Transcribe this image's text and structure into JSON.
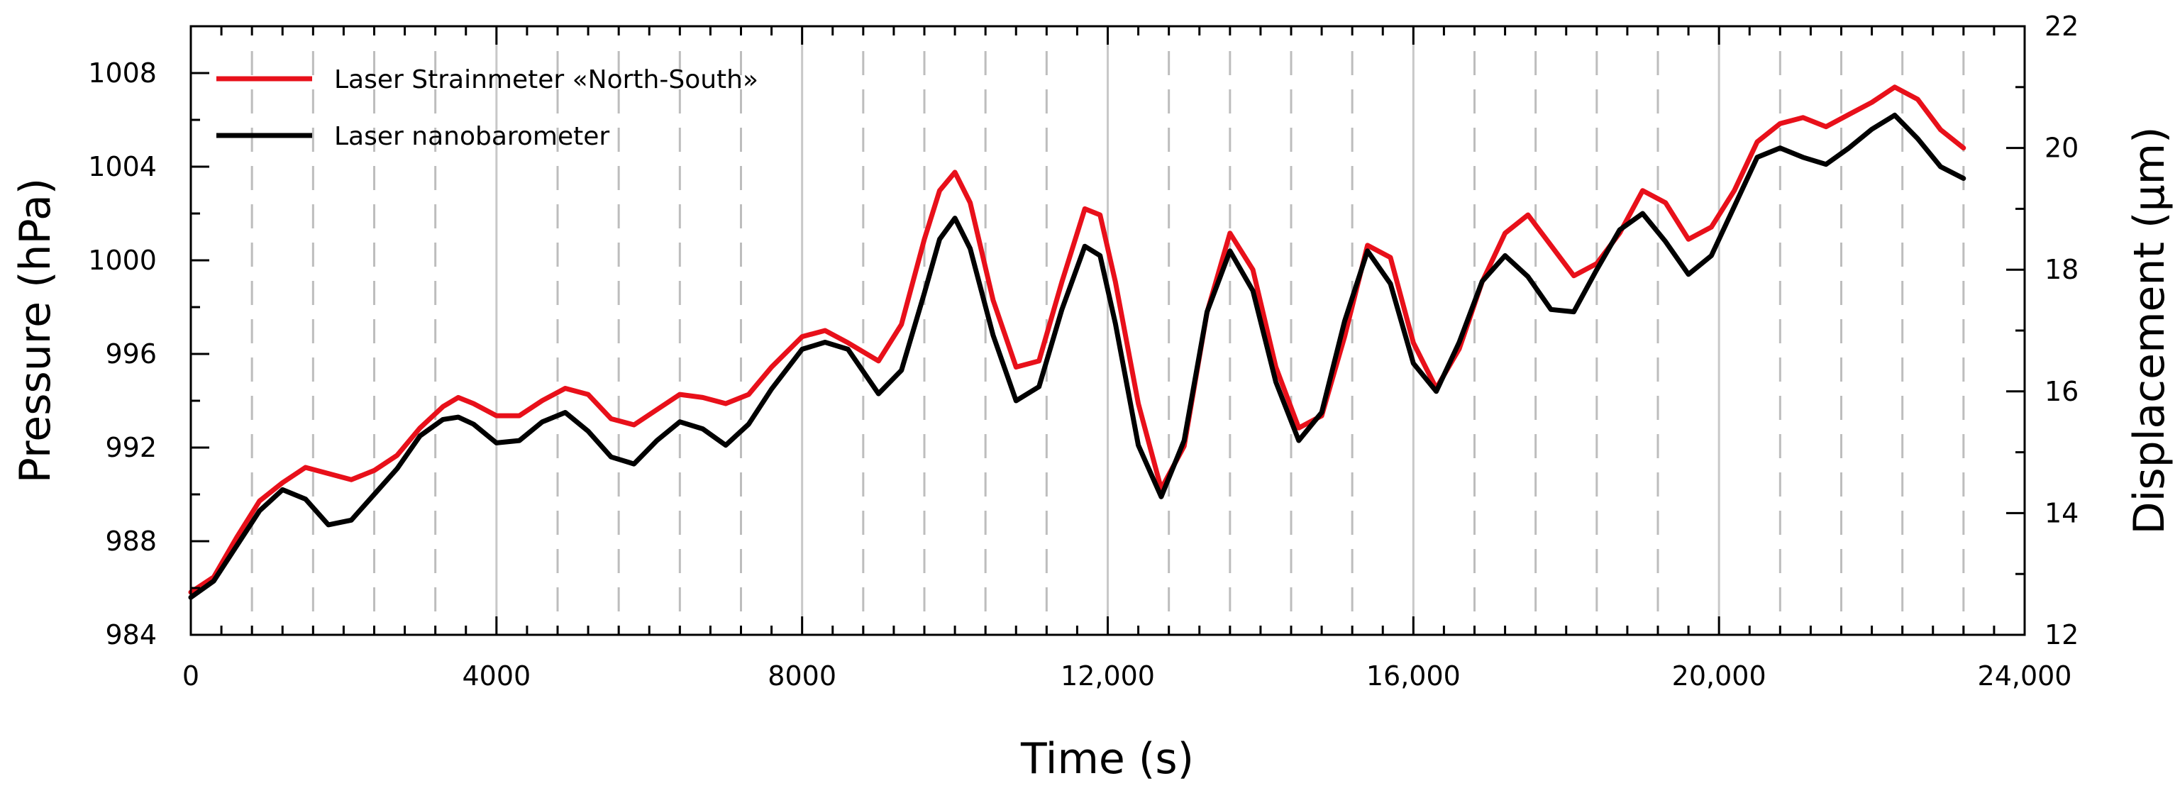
{
  "chart_data": {
    "type": "line",
    "title": "",
    "xlabel": "Time (s)",
    "ylabel_left": "Pressure (hPa)",
    "ylabel_right": "Displacement (µm)",
    "xlim": [
      0,
      24000
    ],
    "ylim_left": [
      984,
      1010
    ],
    "ylim_right": [
      12,
      22
    ],
    "x_ticks": [
      "0",
      "4000",
      "8000",
      "12,000",
      "16,000",
      "20,000",
      "24,000"
    ],
    "y_ticks_left": [
      "984",
      "988",
      "992",
      "996",
      "1000",
      "1004",
      "1008"
    ],
    "y_ticks_right": [
      "12",
      "14",
      "16",
      "18",
      "20",
      "22"
    ],
    "grid": "vertical lines: solid every 4000 s, dashed every 800 s",
    "legend_position": "top-left",
    "series": [
      {
        "name": "Laser Strainmeter «North-South»",
        "color": "#e8101a",
        "axis": "right",
        "x": [
          0,
          300,
          600,
          900,
          1200,
          1500,
          1800,
          2100,
          2400,
          2700,
          3000,
          3300,
          3500,
          3700,
          4000,
          4300,
          4600,
          4900,
          5200,
          5500,
          5800,
          6100,
          6400,
          6700,
          7000,
          7300,
          7600,
          8000,
          8300,
          8600,
          9000,
          9300,
          9600,
          9800,
          10000,
          10200,
          10500,
          10800,
          11100,
          11400,
          11700,
          11900,
          12100,
          12400,
          12700,
          13000,
          13300,
          13600,
          13900,
          14200,
          14500,
          14800,
          15100,
          15400,
          15700,
          16000,
          16300,
          16600,
          16900,
          17200,
          17500,
          17800,
          18100,
          18400,
          18700,
          19000,
          19300,
          19600,
          19900,
          20200,
          20500,
          20800,
          21100,
          21400,
          21700,
          22000,
          22300,
          22600,
          22900,
          23200
        ],
        "y": [
          12.7,
          12.95,
          13.6,
          14.2,
          14.5,
          14.75,
          14.65,
          14.55,
          14.7,
          14.95,
          15.4,
          15.75,
          15.9,
          15.8,
          15.6,
          15.6,
          15.85,
          16.05,
          15.95,
          15.55,
          15.45,
          15.7,
          15.95,
          15.9,
          15.8,
          15.95,
          16.4,
          16.9,
          17.0,
          16.8,
          16.5,
          17.1,
          18.5,
          19.3,
          19.6,
          19.1,
          17.5,
          16.4,
          16.5,
          17.8,
          19.0,
          18.9,
          17.8,
          15.8,
          14.4,
          15.1,
          17.3,
          18.6,
          18.0,
          16.4,
          15.4,
          15.6,
          16.9,
          18.4,
          18.2,
          16.8,
          16.05,
          16.7,
          17.8,
          18.6,
          18.9,
          18.4,
          17.9,
          18.1,
          18.6,
          19.3,
          19.1,
          18.5,
          18.7,
          19.3,
          20.1,
          20.4,
          20.5,
          20.35,
          20.55,
          20.75,
          21.0,
          20.8,
          20.3,
          20.0
        ]
      },
      {
        "name": "Laser nanobarometer",
        "color": "#000000",
        "axis": "left",
        "x": [
          0,
          300,
          600,
          900,
          1200,
          1500,
          1800,
          2100,
          2400,
          2700,
          3000,
          3300,
          3500,
          3700,
          4000,
          4300,
          4600,
          4900,
          5200,
          5500,
          5800,
          6100,
          6400,
          6700,
          7000,
          7300,
          7600,
          8000,
          8300,
          8600,
          9000,
          9300,
          9600,
          9800,
          10000,
          10200,
          10500,
          10800,
          11100,
          11400,
          11700,
          11900,
          12100,
          12400,
          12700,
          13000,
          13300,
          13600,
          13900,
          14200,
          14500,
          14800,
          15100,
          15400,
          15700,
          16000,
          16300,
          16600,
          16900,
          17200,
          17500,
          17800,
          18100,
          18400,
          18700,
          19000,
          19300,
          19600,
          19900,
          20200,
          20500,
          20800,
          21100,
          21400,
          21700,
          22000,
          22300,
          22600,
          22900,
          23200
        ],
        "y": [
          985.6,
          986.3,
          987.8,
          989.3,
          990.2,
          989.8,
          988.7,
          988.9,
          990.0,
          991.1,
          992.5,
          993.2,
          993.3,
          993.0,
          992.2,
          992.3,
          993.1,
          993.5,
          992.7,
          991.6,
          991.3,
          992.3,
          993.1,
          992.8,
          992.1,
          993.0,
          994.5,
          996.2,
          996.5,
          996.2,
          994.3,
          995.3,
          998.6,
          1000.9,
          1001.8,
          1000.5,
          996.8,
          994.0,
          994.6,
          997.9,
          1000.6,
          1000.2,
          997.3,
          992.1,
          989.9,
          992.3,
          997.8,
          1000.4,
          998.7,
          994.8,
          992.3,
          993.5,
          997.4,
          1000.4,
          999.0,
          995.6,
          994.4,
          996.5,
          999.1,
          1000.2,
          999.3,
          997.9,
          997.8,
          999.6,
          1001.3,
          1002.0,
          1000.8,
          999.4,
          1000.2,
          1002.3,
          1004.4,
          1004.8,
          1004.4,
          1004.1,
          1004.8,
          1005.6,
          1006.2,
          1005.2,
          1004.0,
          1003.5
        ]
      }
    ]
  }
}
